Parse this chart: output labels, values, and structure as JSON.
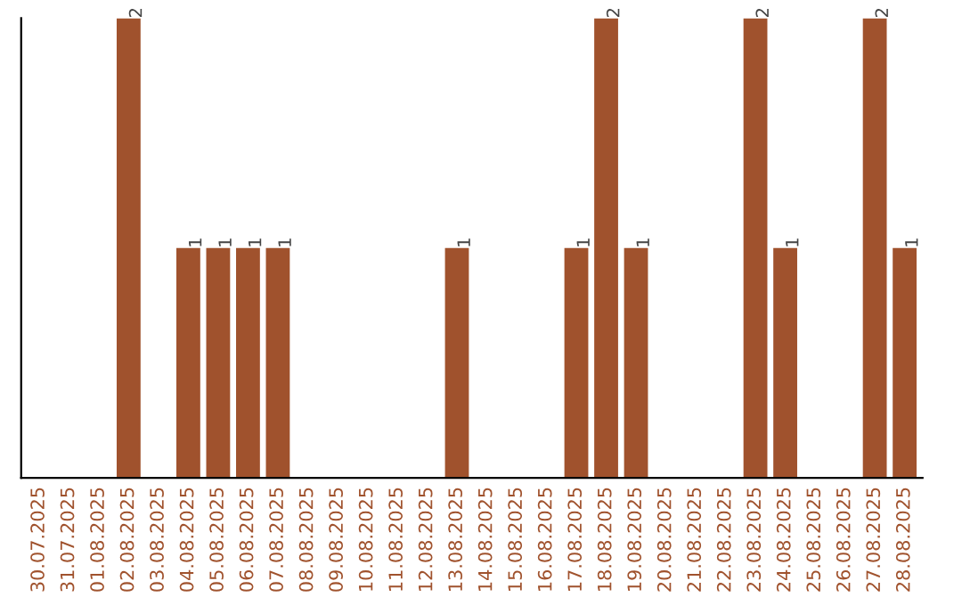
{
  "chart_data": {
    "type": "bar",
    "categories": [
      "30.07.2025",
      "31.07.2025",
      "01.08.2025",
      "02.08.2025",
      "03.08.2025",
      "04.08.2025",
      "05.08.2025",
      "06.08.2025",
      "07.08.2025",
      "08.08.2025",
      "09.08.2025",
      "10.08.2025",
      "11.08.2025",
      "12.08.2025",
      "13.08.2025",
      "14.08.2025",
      "15.08.2025",
      "16.08.2025",
      "17.08.2025",
      "18.08.2025",
      "19.08.2025",
      "20.08.2025",
      "21.08.2025",
      "22.08.2025",
      "23.08.2025",
      "24.08.2025",
      "25.08.2025",
      "26.08.2025",
      "27.08.2025",
      "28.08.2025"
    ],
    "values": [
      0,
      0,
      0,
      2,
      0,
      1,
      1,
      1,
      1,
      0,
      0,
      0,
      0,
      0,
      1,
      0,
      0,
      0,
      1,
      2,
      1,
      0,
      0,
      0,
      2,
      1,
      0,
      0,
      2,
      1
    ],
    "value_labels": [
      null,
      null,
      null,
      "2",
      null,
      "1",
      "1",
      "1",
      "1",
      null,
      null,
      null,
      null,
      null,
      "1",
      null,
      null,
      null,
      "1",
      "2",
      "1",
      null,
      null,
      null,
      "2",
      "1",
      null,
      null,
      "2",
      "1"
    ],
    "color": "#a0522d",
    "relative": false,
    "grid": false,
    "legend": false
  }
}
